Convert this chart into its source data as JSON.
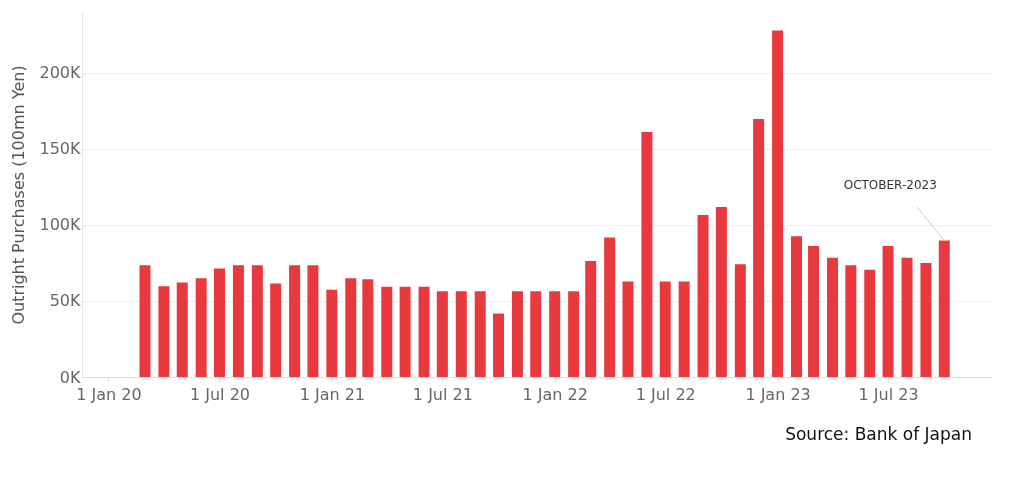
{
  "chart_data": {
    "type": "bar",
    "ylabel": "Outright Purchases (100mn Yen)",
    "x": [
      "2020-03-01",
      "2020-04-01",
      "2020-05-01",
      "2020-06-01",
      "2020-07-01",
      "2020-08-01",
      "2020-09-01",
      "2020-10-01",
      "2020-11-01",
      "2020-12-01",
      "2021-01-01",
      "2021-02-01",
      "2021-03-01",
      "2021-04-01",
      "2021-05-01",
      "2021-06-01",
      "2021-07-01",
      "2021-08-01",
      "2021-09-01",
      "2021-10-01",
      "2021-11-01",
      "2021-12-01",
      "2022-01-01",
      "2022-02-01",
      "2022-03-01",
      "2022-04-01",
      "2022-05-01",
      "2022-06-01",
      "2022-07-01",
      "2022-08-01",
      "2022-09-01",
      "2022-10-01",
      "2022-11-01",
      "2022-12-01",
      "2023-01-01",
      "2023-02-01",
      "2023-03-01",
      "2023-04-01",
      "2023-05-01",
      "2023-06-01",
      "2023-07-01",
      "2023-08-01",
      "2023-09-01",
      "2023-10-01"
    ],
    "series": [
      {
        "color": "#e8393e",
        "values": [
          73500,
          59600,
          62200,
          65000,
          71400,
          73500,
          73500,
          61500,
          73500,
          73500,
          57300,
          65000,
          64300,
          59400,
          59400,
          59400,
          56400,
          56400,
          56400,
          41700,
          56400,
          56400,
          56400,
          56400,
          76300,
          91700,
          62800,
          161100,
          62800,
          62800,
          106600,
          111800,
          74100,
          169700,
          227800,
          92500,
          86100,
          78400,
          73500,
          70500,
          86100,
          78400,
          75000,
          89700
        ]
      }
    ],
    "xlim": [
      "2019-11-27",
      "2023-12-10"
    ],
    "xticks": [
      {
        "value": "2020-01-01",
        "label": "1 Jan 20"
      },
      {
        "value": "2020-07-01",
        "label": "1 Jul 20"
      },
      {
        "value": "2021-01-01",
        "label": "1 Jan 21"
      },
      {
        "value": "2021-07-01",
        "label": "1 Jul 21"
      },
      {
        "value": "2022-01-01",
        "label": "1 Jan 22"
      },
      {
        "value": "2022-07-01",
        "label": "1 Jul 22"
      },
      {
        "value": "2023-01-01",
        "label": "1 Jan 23"
      },
      {
        "value": "2023-07-01",
        "label": "1 Jul 23"
      }
    ],
    "ylim": [
      0,
      240000
    ],
    "yticks": [
      {
        "value": 0,
        "label": "0K"
      },
      {
        "value": 50000,
        "label": "50K"
      },
      {
        "value": 100000,
        "label": "100K"
      },
      {
        "value": 150000,
        "label": "150K"
      },
      {
        "value": 200000,
        "label": "200K"
      }
    ],
    "grid": "y",
    "annotations": [
      {
        "text": "OCTOBER-2023",
        "x": "2023-10-01",
        "y": 89700
      },
      "Source: Bank of Japan"
    ]
  }
}
